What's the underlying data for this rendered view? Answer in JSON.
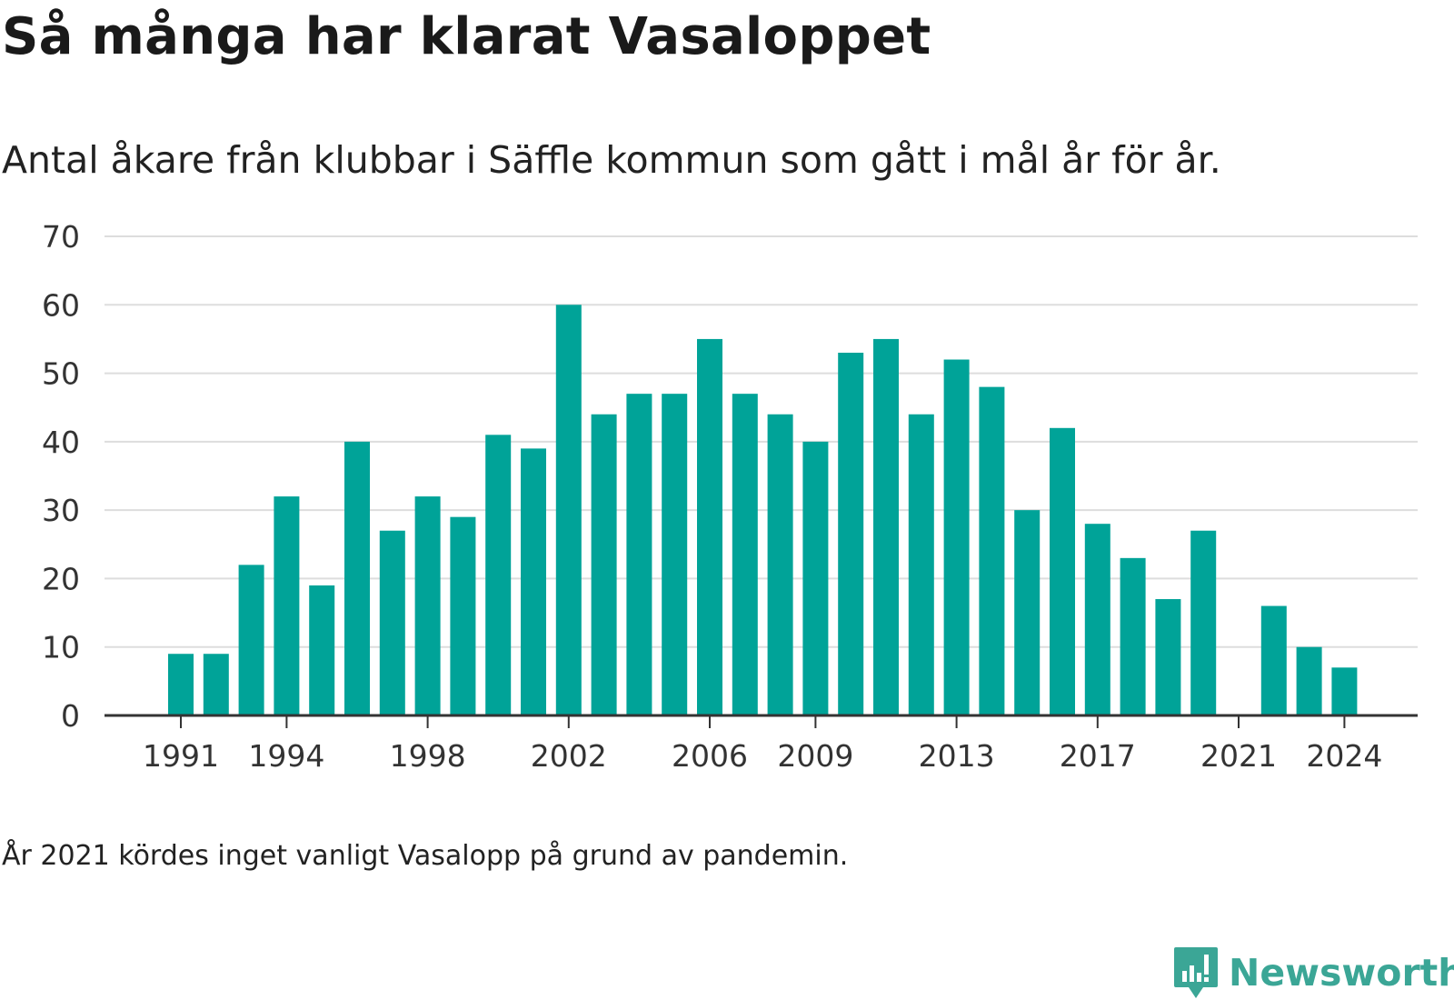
{
  "title": "Så många har klarat Vasaloppet",
  "subtitle": "Antal åkare från klubbar i Säffle kommun som gått i mål år för år.",
  "note": "År 2021 kördes inget vanligt Vasalopp på grund av pandemin.",
  "brand": {
    "name": "Newsworthy",
    "color": "#3ba696",
    "icon": "newsworthy-logo-icon"
  },
  "colors": {
    "bar": "#00a398",
    "grid": "#dddddd",
    "axis": "#333333"
  },
  "chart_data": {
    "type": "bar",
    "title": "Så många har klarat Vasaloppet",
    "xlabel": "",
    "ylabel": "",
    "ylim": [
      0,
      70
    ],
    "yticks": [
      0,
      10,
      20,
      30,
      40,
      50,
      60,
      70
    ],
    "xtick_labels": [
      "1991",
      "1994",
      "1998",
      "2002",
      "2006",
      "2009",
      "2013",
      "2017",
      "2021",
      "2024"
    ],
    "grid": true,
    "categories": [
      "1991",
      "1992",
      "1993",
      "1994",
      "1995",
      "1996",
      "1997",
      "1998",
      "1999",
      "2000",
      "2001",
      "2002",
      "2003",
      "2004",
      "2005",
      "2006",
      "2007",
      "2008",
      "2009",
      "2010",
      "2011",
      "2012",
      "2013",
      "2014",
      "2015",
      "2016",
      "2017",
      "2018",
      "2019",
      "2020",
      "2021",
      "2022",
      "2023",
      "2024"
    ],
    "values": [
      9,
      9,
      22,
      32,
      19,
      40,
      27,
      32,
      29,
      41,
      39,
      60,
      44,
      47,
      47,
      55,
      47,
      44,
      40,
      53,
      55,
      44,
      52,
      48,
      30,
      42,
      28,
      23,
      17,
      27,
      null,
      16,
      10,
      7
    ]
  }
}
